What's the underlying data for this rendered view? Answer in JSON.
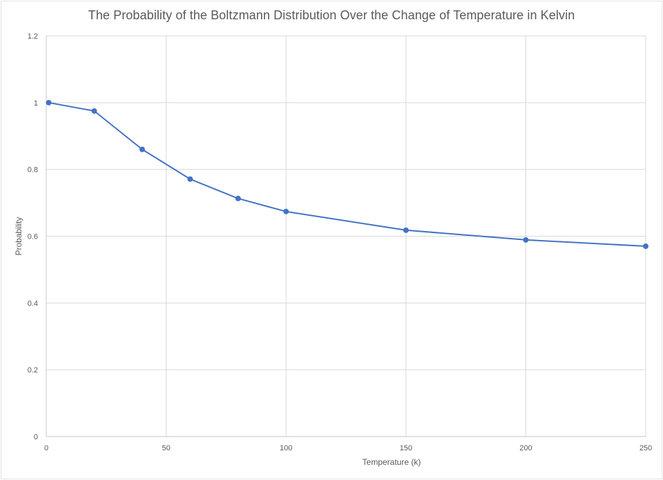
{
  "chart_data": {
    "type": "line",
    "title": "The Probability of the Boltzmann Distribution Over the Change of Temperature in Kelvin",
    "xlabel": "Temperature (k)",
    "ylabel": "Probability",
    "xlim": [
      0,
      250
    ],
    "ylim": [
      0,
      1.2
    ],
    "xticks": [
      0,
      50,
      100,
      150,
      200,
      250
    ],
    "yticks": [
      0,
      0.2,
      0.4,
      0.6,
      0.8,
      1,
      1.2
    ],
    "xtick_labels": [
      "0",
      "50",
      "100",
      "150",
      "200",
      "250"
    ],
    "ytick_labels": [
      "0",
      "0.2",
      "0.4",
      "0.6",
      "0.8",
      "1",
      "1.2"
    ],
    "grid": true,
    "legend": "none",
    "series": [
      {
        "name": "Probability",
        "color": "#4472c4",
        "marker": "circle",
        "x": [
          1,
          20,
          40,
          60,
          80,
          100,
          150,
          200,
          250
        ],
        "y": [
          1.0,
          0.975,
          0.86,
          0.771,
          0.713,
          0.674,
          0.618,
          0.589,
          0.57
        ]
      }
    ]
  },
  "colors": {
    "gridline": "#d9d9d9",
    "text": "#595959",
    "series": "#4472c4"
  }
}
